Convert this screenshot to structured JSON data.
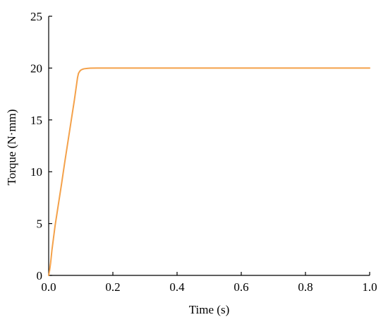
{
  "chart_data": {
    "type": "line",
    "title": "",
    "xlabel": "Time  (s)",
    "ylabel": "Torque (N·mm)",
    "xlim": [
      0,
      1.0
    ],
    "ylim": [
      0,
      25
    ],
    "xticks": [
      0.0,
      0.2,
      0.4,
      0.6,
      0.8,
      1.0
    ],
    "xtick_labels": [
      "0.0",
      "0.2",
      "0.4",
      "0.6",
      "0.8",
      "1.0"
    ],
    "yticks": [
      0,
      5,
      10,
      15,
      20,
      25
    ],
    "ytick_labels": [
      "0",
      "5",
      "10",
      "15",
      "20",
      "25"
    ],
    "grid": false,
    "legend": "none",
    "series": [
      {
        "color": "#f4a14a",
        "x": [
          0,
          0.003,
          0.006,
          0.01,
          0.015,
          0.02,
          0.03,
          0.04,
          0.05,
          0.06,
          0.07,
          0.08,
          0.085,
          0.09,
          0.093,
          0.097,
          0.1,
          0.105,
          0.11,
          0.12,
          0.13,
          0.15,
          0.18,
          0.2,
          0.3,
          0.4,
          0.5,
          0.6,
          0.7,
          0.8,
          0.9,
          1.0
        ],
        "y": [
          0,
          0.5,
          1.2,
          2.4,
          3.6,
          4.8,
          6.8,
          8.8,
          10.9,
          12.9,
          14.9,
          16.9,
          18.0,
          19.1,
          19.5,
          19.7,
          19.8,
          19.88,
          19.93,
          19.97,
          19.99,
          20.0,
          20.0,
          20.0,
          20.0,
          20.0,
          20.0,
          20.0,
          20.0,
          20.0,
          20.0,
          20.0
        ]
      }
    ]
  }
}
